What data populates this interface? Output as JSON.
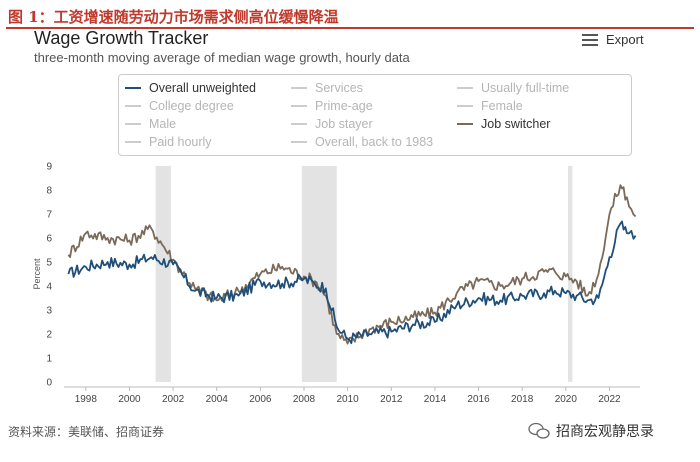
{
  "figure_title": "图 1：工资增速随劳动力市场需求侧高位缓慢降温",
  "chart_title": "Wage Growth Tracker",
  "chart_subtitle": "three-month moving average of median wage growth, hourly data",
  "export_label": "Export",
  "legend": [
    {
      "label": "Overall unweighted",
      "color": "#1f4e79",
      "active": true
    },
    {
      "label": "Services",
      "color": "#cccccc",
      "active": false
    },
    {
      "label": "Usually full-time",
      "color": "#cccccc",
      "active": false
    },
    {
      "label": "College degree",
      "color": "#cccccc",
      "active": false
    },
    {
      "label": "Prime-age",
      "color": "#cccccc",
      "active": false
    },
    {
      "label": "Female",
      "color": "#cccccc",
      "active": false
    },
    {
      "label": "Male",
      "color": "#cccccc",
      "active": false
    },
    {
      "label": "Job stayer",
      "color": "#cccccc",
      "active": false
    },
    {
      "label": "Job switcher",
      "color": "#7a6a5a",
      "active": true
    },
    {
      "label": "Paid hourly",
      "color": "#cccccc",
      "active": false
    },
    {
      "label": "Overall, back to 1983",
      "color": "#cccccc",
      "active": false
    }
  ],
  "source_text": "资料来源：美联储、招商证券",
  "brand_text": "招商宏观静思录",
  "chart_data": {
    "type": "line",
    "title": "Wage Growth Tracker",
    "subtitle": "three-month moving average of median wage growth, hourly data",
    "xlabel": "",
    "ylabel": "Percent",
    "xlim": [
      1997,
      2023.4
    ],
    "ylim": [
      0,
      9
    ],
    "x_ticks": [
      1998,
      2000,
      2002,
      2004,
      2006,
      2008,
      2010,
      2012,
      2014,
      2016,
      2018,
      2020,
      2022
    ],
    "y_ticks": [
      0,
      1,
      2,
      3,
      4,
      5,
      6,
      7,
      8,
      9
    ],
    "recessions": [
      [
        2001.2,
        2001.9
      ],
      [
        2007.9,
        2009.5
      ],
      [
        2020.1,
        2020.3
      ]
    ],
    "series": [
      {
        "name": "Overall unweighted",
        "color": "#1f4e79",
        "x": [
          1997.2,
          1998.0,
          1999.0,
          2000.0,
          2001.0,
          2002.0,
          2003.0,
          2004.0,
          2005.0,
          2006.0,
          2007.0,
          2008.0,
          2008.5,
          2009.0,
          2009.5,
          2010.0,
          2011.0,
          2012.0,
          2013.0,
          2014.0,
          2015.0,
          2016.0,
          2017.0,
          2018.0,
          2019.0,
          2019.5,
          2020.0,
          2020.5,
          2021.0,
          2021.5,
          2022.0,
          2022.5,
          2022.8,
          2023.0,
          2023.2
        ],
        "y": [
          4.5,
          4.8,
          5.0,
          4.9,
          5.2,
          4.9,
          3.8,
          3.5,
          3.6,
          4.2,
          4.1,
          4.3,
          4.1,
          3.9,
          2.3,
          1.8,
          2.0,
          2.1,
          2.4,
          2.5,
          3.2,
          3.5,
          3.4,
          3.6,
          3.7,
          3.8,
          3.7,
          3.6,
          3.4,
          3.5,
          5.2,
          6.6,
          6.2,
          6.3,
          6.1
        ]
      },
      {
        "name": "Job switcher",
        "color": "#7a6a5a",
        "x": [
          1997.2,
          1998.0,
          1999.0,
          2000.0,
          2001.0,
          2002.0,
          2003.0,
          2004.0,
          2005.0,
          2006.0,
          2007.0,
          2008.0,
          2008.5,
          2009.0,
          2009.5,
          2010.0,
          2011.0,
          2012.0,
          2013.0,
          2014.0,
          2015.0,
          2016.0,
          2017.0,
          2018.0,
          2019.0,
          2019.5,
          2020.0,
          2020.5,
          2021.0,
          2021.5,
          2022.0,
          2022.5,
          2022.8,
          2023.0,
          2023.2
        ],
        "y": [
          5.3,
          6.2,
          6.0,
          5.9,
          6.4,
          5.1,
          3.9,
          3.4,
          3.8,
          4.5,
          4.8,
          4.4,
          4.2,
          3.6,
          2.0,
          1.6,
          2.2,
          2.5,
          2.7,
          2.9,
          3.7,
          4.2,
          4.0,
          4.3,
          4.6,
          4.6,
          4.4,
          4.2,
          3.6,
          4.5,
          7.0,
          8.2,
          7.7,
          7.2,
          6.9
        ]
      }
    ]
  }
}
